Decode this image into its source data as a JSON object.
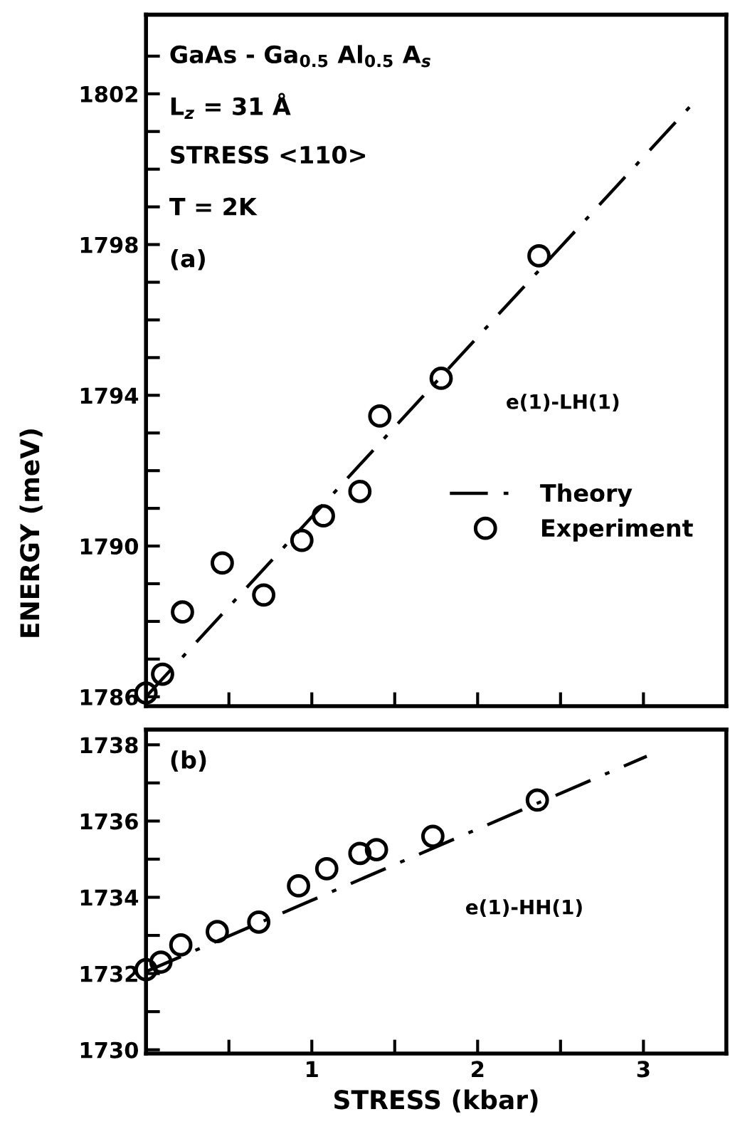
{
  "chart_data": [
    {
      "type": "scatter",
      "ylabel": "ENERGY (meV)",
      "annotations": [
        "GaAs - Ga$_{0.5}$ Al$_{0.5}$ A$_{s}$",
        "L$_{z}$ = 31 Å",
        "STRESS <110>",
        "T = 2K",
        "(a)",
        "e(1)-LH(1)"
      ],
      "series": [
        {
          "name": "Theory",
          "type": "line",
          "color": "#000000",
          "line_style": "dashdot",
          "marker": "none",
          "x": [
            0,
            3.31
          ],
          "values": [
            1786.0,
            1801.8
          ]
        },
        {
          "name": "Experiment",
          "color": "#000000",
          "marker": "circle",
          "x": [
            0,
            0.1,
            0.22,
            0.46,
            0.71,
            0.94,
            1.07,
            1.29,
            1.41,
            1.78,
            2.37
          ],
          "values": [
            1786.1,
            1786.6,
            1788.25,
            1789.55,
            1788.7,
            1790.15,
            1790.8,
            1791.45,
            1793.45,
            1794.45,
            1797.7
          ]
        }
      ],
      "xlim": [
        0,
        3.5
      ],
      "xticks": [
        {
          "value": 0,
          "label": null
        },
        {
          "value": 0.5,
          "label": null
        },
        {
          "value": 1,
          "label": null
        },
        {
          "value": 1.5,
          "label": null
        },
        {
          "value": 2,
          "label": null
        },
        {
          "value": 2.5,
          "label": null
        },
        {
          "value": 3,
          "label": null
        }
      ],
      "ylim": [
        1785.75,
        1804.1
      ],
      "yticks": [
        1786,
        {
          "value": 1787,
          "label": null
        },
        {
          "value": 1788,
          "label": null
        },
        {
          "value": 1789,
          "label": null
        },
        1790,
        {
          "value": 1791,
          "label": null
        },
        {
          "value": 1792,
          "label": null
        },
        {
          "value": 1793,
          "label": null
        },
        1794,
        {
          "value": 1795,
          "label": null
        },
        {
          "value": 1796,
          "label": null
        },
        {
          "value": 1797,
          "label": null
        },
        1798,
        {
          "value": 1799,
          "label": null
        },
        {
          "value": 1800,
          "label": null
        },
        {
          "value": 1801,
          "label": null
        },
        1802,
        {
          "value": 1803,
          "label": null
        }
      ],
      "tick_labels": "y",
      "legend": "right",
      "grid": false
    },
    {
      "type": "scatter",
      "xlabel": "STRESS (kbar)",
      "annotations": [
        "(b)",
        "e(1)-HH(1)"
      ],
      "series": [
        {
          "type": "line",
          "color": "#000000",
          "line_style": "dashdot",
          "marker": "none",
          "x": [
            0,
            3.02
          ],
          "values": [
            1732.05,
            1737.7
          ]
        },
        {
          "color": "#000000",
          "marker": "circle",
          "x": [
            0,
            0.09,
            0.21,
            0.43,
            0.68,
            0.92,
            1.09,
            1.29,
            1.39,
            1.73,
            2.36
          ],
          "values": [
            1732.1,
            1732.3,
            1732.75,
            1733.1,
            1733.35,
            1734.3,
            1734.75,
            1735.15,
            1735.25,
            1735.6,
            1736.55
          ]
        }
      ],
      "xlim": [
        0,
        3.5
      ],
      "xticks": [
        {
          "value": 0,
          "label": null
        },
        {
          "value": 0.5,
          "label": null
        },
        1,
        {
          "value": 1.5,
          "label": null
        },
        2,
        {
          "value": 2.5,
          "label": null
        },
        3
      ],
      "ylim": [
        1729.9,
        1738.4
      ],
      "yticks": [
        1730,
        {
          "value": 1731,
          "label": null
        },
        1732,
        {
          "value": 1733,
          "label": null
        },
        1734,
        {
          "value": 1735,
          "label": null
        },
        1736,
        {
          "value": 1737,
          "label": null
        },
        1738
      ],
      "grid": false
    }
  ]
}
